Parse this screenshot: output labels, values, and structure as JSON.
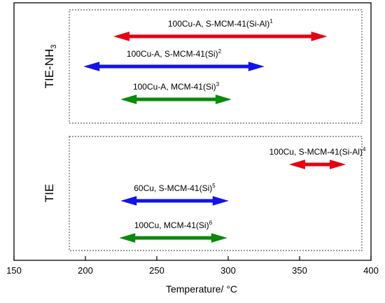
{
  "chart_data": {
    "type": "range",
    "xlabel": "Temperature/ °C",
    "xlim": [
      150,
      400
    ],
    "xticks": [
      150,
      200,
      250,
      300,
      350,
      400
    ],
    "grid": false,
    "groups": [
      {
        "label": "TIE-NH3",
        "label_main": "TIE-NH",
        "label_sub": "3",
        "ranges": [
          {
            "label": "100Cu-A, S-MCM-41(Si-Al)",
            "superscript": "1",
            "start": 220,
            "end": 369,
            "color": "#e60012"
          },
          {
            "label": "100Cu-A, S-MCM-41(Si)",
            "superscript": "2",
            "start": 199,
            "end": 325,
            "color": "#1414e6"
          },
          {
            "label": "100Cu-A, MCM-41(Si)",
            "superscript": "3",
            "start": 225,
            "end": 302,
            "color": "#0a8a0a"
          }
        ]
      },
      {
        "label": "TIE",
        "label_main": "TIE",
        "label_sub": "",
        "ranges": [
          {
            "label": "100Cu, S-MCM-41(Si-Al)",
            "superscript": "4",
            "start": 343,
            "end": 382,
            "color": "#e60012"
          },
          {
            "label": "60Cu, S-MCM-41(Si)",
            "superscript": "5",
            "start": 225,
            "end": 300,
            "color": "#1414e6"
          },
          {
            "label": "100Cu, MCM-41(Si)",
            "superscript": "6",
            "start": 224,
            "end": 299,
            "color": "#0a8a0a"
          }
        ]
      }
    ]
  }
}
